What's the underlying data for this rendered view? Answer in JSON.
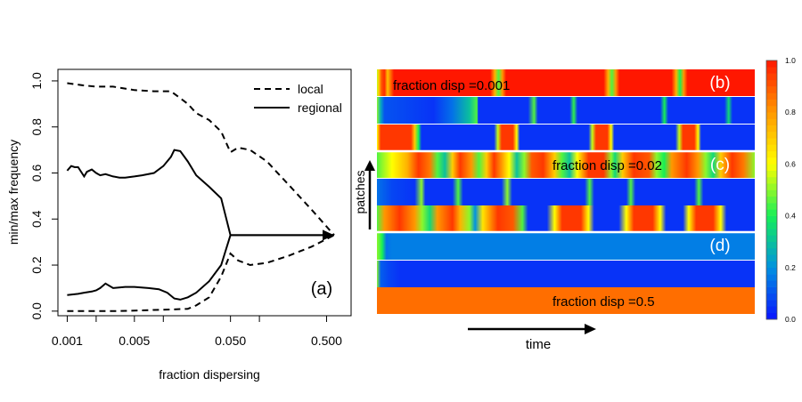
{
  "chart_data": [
    {
      "type": "line",
      "panel_label": "(a)",
      "xlabel": "fraction dispersing",
      "ylabel": "min/max frequency",
      "x_scale": "log",
      "xlim": [
        0.0008,
        0.9
      ],
      "ylim": [
        -0.02,
        1.05
      ],
      "x_ticks": [
        0.001,
        0.002,
        0.005,
        0.01,
        0.05,
        0.1,
        0.5
      ],
      "x_tick_labels": [
        "0.001",
        "",
        "0.005",
        "",
        "0.050",
        "",
        "0.500"
      ],
      "y_ticks": [
        0.0,
        0.2,
        0.4,
        0.6,
        0.8,
        1.0
      ],
      "y_tick_labels": [
        "0.0",
        "0.2",
        "0.4",
        "0.6",
        "0.8",
        "1.0"
      ],
      "legend": {
        "position": "top-right",
        "entries": [
          {
            "label": "local",
            "style": "dashed"
          },
          {
            "label": "regional",
            "style": "solid"
          }
        ]
      },
      "series": [
        {
          "name": "local",
          "style": "dashed",
          "role": "max",
          "x": [
            0.001,
            0.0015,
            0.002,
            0.003,
            0.005,
            0.008,
            0.012,
            0.018,
            0.022,
            0.03,
            0.04,
            0.05,
            0.06,
            0.08,
            0.12,
            0.2,
            0.35,
            0.6
          ],
          "y": [
            0.99,
            0.98,
            0.975,
            0.975,
            0.96,
            0.955,
            0.955,
            0.9,
            0.86,
            0.83,
            0.78,
            0.69,
            0.71,
            0.7,
            0.65,
            0.55,
            0.44,
            0.33
          ]
        },
        {
          "name": "local",
          "style": "dashed",
          "role": "min",
          "x": [
            0.001,
            0.003,
            0.005,
            0.008,
            0.012,
            0.018,
            0.022,
            0.03,
            0.04,
            0.05,
            0.06,
            0.08,
            0.12,
            0.2,
            0.35,
            0.6
          ],
          "y": [
            0.0,
            0.0,
            0.002,
            0.005,
            0.007,
            0.01,
            0.025,
            0.06,
            0.15,
            0.25,
            0.22,
            0.2,
            0.21,
            0.24,
            0.28,
            0.33
          ]
        },
        {
          "name": "regional",
          "style": "solid",
          "role": "max",
          "x": [
            0.001,
            0.0011,
            0.0012,
            0.0013,
            0.0015,
            0.0016,
            0.0018,
            0.002,
            0.0022,
            0.0025,
            0.003,
            0.0035,
            0.004,
            0.005,
            0.006,
            0.008,
            0.01,
            0.012,
            0.013,
            0.015,
            0.018,
            0.022,
            0.03,
            0.04,
            0.05,
            0.6
          ],
          "y": [
            0.61,
            0.63,
            0.625,
            0.625,
            0.585,
            0.605,
            0.615,
            0.6,
            0.59,
            0.595,
            0.585,
            0.58,
            0.58,
            0.585,
            0.59,
            0.6,
            0.63,
            0.67,
            0.7,
            0.695,
            0.65,
            0.59,
            0.54,
            0.49,
            0.33,
            0.33
          ]
        },
        {
          "name": "regional",
          "style": "solid",
          "role": "min",
          "x": [
            0.001,
            0.0013,
            0.0015,
            0.0018,
            0.002,
            0.0022,
            0.0025,
            0.003,
            0.004,
            0.005,
            0.007,
            0.009,
            0.011,
            0.013,
            0.015,
            0.018,
            0.022,
            0.03,
            0.04,
            0.05,
            0.6
          ],
          "y": [
            0.07,
            0.075,
            0.08,
            0.085,
            0.09,
            0.1,
            0.12,
            0.1,
            0.105,
            0.105,
            0.1,
            0.095,
            0.08,
            0.055,
            0.05,
            0.06,
            0.08,
            0.13,
            0.2,
            0.33,
            0.33
          ]
        }
      ]
    },
    {
      "type": "heatmap",
      "xlabel": "time",
      "ylabel": "patches",
      "colorbar": {
        "min": 0.0,
        "max": 1.0,
        "ticks": [
          0.0,
          0.2,
          0.4,
          0.6,
          0.8,
          1.0
        ],
        "tick_labels": [
          "0.0",
          "0.2",
          "0.4",
          "0.6",
          "0.8",
          "1.0"
        ]
      },
      "colormap": [
        "#0a14ff",
        "#0091e0",
        "#16ef57",
        "#ffff00",
        "#ff9800",
        "#ff1700"
      ],
      "groups": [
        {
          "panel_label": "(b)",
          "annotation": "fraction disp =0.001",
          "rows": [
            [
              [
                0,
                0.55
              ],
              [
                0.005,
                0.7
              ],
              [
                0.012,
                0.9
              ],
              [
                0.02,
                0.97
              ],
              [
                0.028,
                0.72
              ],
              [
                0.036,
                0.86
              ],
              [
                0.045,
                1
              ],
              [
                0.3,
                1
              ],
              [
                0.312,
                0.75
              ],
              [
                0.322,
                0.45
              ],
              [
                0.332,
                0.8
              ],
              [
                0.342,
                1
              ],
              [
                0.6,
                1
              ],
              [
                0.612,
                0.75
              ],
              [
                0.622,
                0.45
              ],
              [
                0.632,
                0.8
              ],
              [
                0.642,
                1
              ],
              [
                0.78,
                1
              ],
              [
                0.792,
                0.75
              ],
              [
                0.802,
                0.4
              ],
              [
                0.812,
                0.8
              ],
              [
                0.822,
                1
              ],
              [
                1,
                1
              ]
            ],
            [
              [
                0,
                0.5
              ],
              [
                0.01,
                0.25
              ],
              [
                0.02,
                0.1
              ],
              [
                0.15,
                0.05
              ],
              [
                0.2,
                0.15
              ],
              [
                0.245,
                0.3
              ],
              [
                0.265,
                0.45
              ],
              [
                0.268,
                0.05
              ],
              [
                0.4,
                0.05
              ],
              [
                0.416,
                0.45
              ],
              [
                0.426,
                0.05
              ],
              [
                0.51,
                0.05
              ],
              [
                0.521,
                0.42
              ],
              [
                0.531,
                0.05
              ],
              [
                0.75,
                0.05
              ],
              [
                0.761,
                0.4
              ],
              [
                0.771,
                0.05
              ],
              [
                0.92,
                0.05
              ],
              [
                0.931,
                0.35
              ],
              [
                0.941,
                0.05
              ],
              [
                1,
                0.05
              ]
            ],
            [
              [
                0,
                0.6
              ],
              [
                0.01,
                0.95
              ],
              [
                0.09,
                0.95
              ],
              [
                0.1,
                0.7
              ],
              [
                0.11,
                0.4
              ],
              [
                0.118,
                0.05
              ],
              [
                0.31,
                0.05
              ],
              [
                0.32,
                0.55
              ],
              [
                0.33,
                0.95
              ],
              [
                0.36,
                0.95
              ],
              [
                0.37,
                0.6
              ],
              [
                0.378,
                0.05
              ],
              [
                0.56,
                0.05
              ],
              [
                0.57,
                0.55
              ],
              [
                0.58,
                0.95
              ],
              [
                0.61,
                0.95
              ],
              [
                0.62,
                0.6
              ],
              [
                0.628,
                0.05
              ],
              [
                0.79,
                0.05
              ],
              [
                0.8,
                0.55
              ],
              [
                0.81,
                0.95
              ],
              [
                0.84,
                0.95
              ],
              [
                0.85,
                0.6
              ],
              [
                0.858,
                0.05
              ],
              [
                1,
                0.05
              ]
            ]
          ]
        },
        {
          "panel_label": "(c)",
          "annotation": "fraction disp =0.02",
          "rows": [
            [
              [
                0,
                0.45
              ],
              [
                0.04,
                0.6
              ],
              [
                0.08,
                0.75
              ],
              [
                0.11,
                0.95
              ],
              [
                0.14,
                0.85
              ],
              [
                0.16,
                0.45
              ],
              [
                0.18,
                0.3
              ],
              [
                0.2,
                0.7
              ],
              [
                0.22,
                0.95
              ],
              [
                0.25,
                0.8
              ],
              [
                0.27,
                0.45
              ],
              [
                0.29,
                0.7
              ],
              [
                0.31,
                0.95
              ],
              [
                0.33,
                0.8
              ],
              [
                0.35,
                0.6
              ],
              [
                0.37,
                0.3
              ],
              [
                0.39,
                0.5
              ],
              [
                0.41,
                0.9
              ],
              [
                0.44,
                0.95
              ],
              [
                0.47,
                0.7
              ],
              [
                0.49,
                0.45
              ],
              [
                0.51,
                0.3
              ],
              [
                0.53,
                0.6
              ],
              [
                0.56,
                0.95
              ],
              [
                0.6,
                0.95
              ],
              [
                0.62,
                0.5
              ],
              [
                0.63,
                0.35
              ],
              [
                0.65,
                0.7
              ],
              [
                0.68,
                0.95
              ],
              [
                0.72,
                0.9
              ],
              [
                0.74,
                0.5
              ],
              [
                0.76,
                0.4
              ],
              [
                0.78,
                0.8
              ],
              [
                0.82,
                0.95
              ],
              [
                0.85,
                0.8
              ],
              [
                0.87,
                0.5
              ],
              [
                0.89,
                0.35
              ],
              [
                0.91,
                0.7
              ],
              [
                0.94,
                0.95
              ],
              [
                0.97,
                0.85
              ],
              [
                1,
                0.5
              ]
            ],
            [
              [
                0,
                0.15
              ],
              [
                0.04,
                0.08
              ],
              [
                0.1,
                0.05
              ],
              [
                0.118,
                0.5
              ],
              [
                0.128,
                0.05
              ],
              [
                0.2,
                0.05
              ],
              [
                0.215,
                0.45
              ],
              [
                0.228,
                0.05
              ],
              [
                0.33,
                0.05
              ],
              [
                0.345,
                0.5
              ],
              [
                0.358,
                0.05
              ],
              [
                0.55,
                0.05
              ],
              [
                0.563,
                0.45
              ],
              [
                0.575,
                0.05
              ],
              [
                0.66,
                0.05
              ],
              [
                0.672,
                0.45
              ],
              [
                0.684,
                0.05
              ],
              [
                0.84,
                0.05
              ],
              [
                0.852,
                0.45
              ],
              [
                0.864,
                0.05
              ],
              [
                1,
                0.05
              ]
            ],
            [
              [
                0,
                0.45
              ],
              [
                0.02,
                0.8
              ],
              [
                0.06,
                0.95
              ],
              [
                0.1,
                0.8
              ],
              [
                0.12,
                0.5
              ],
              [
                0.14,
                0.35
              ],
              [
                0.16,
                0.8
              ],
              [
                0.2,
                0.95
              ],
              [
                0.22,
                0.75
              ],
              [
                0.245,
                0.5
              ],
              [
                0.26,
                0.2
              ],
              [
                0.28,
                0.65
              ],
              [
                0.32,
                0.95
              ],
              [
                0.36,
                0.9
              ],
              [
                0.385,
                0.45
              ],
              [
                0.4,
                0.05
              ],
              [
                0.45,
                0.05
              ],
              [
                0.47,
                0.6
              ],
              [
                0.49,
                0.95
              ],
              [
                0.54,
                0.95
              ],
              [
                0.56,
                0.6
              ],
              [
                0.575,
                0.05
              ],
              [
                0.64,
                0.05
              ],
              [
                0.66,
                0.6
              ],
              [
                0.68,
                0.95
              ],
              [
                0.73,
                0.95
              ],
              [
                0.75,
                0.6
              ],
              [
                0.765,
                0.05
              ],
              [
                0.81,
                0.05
              ],
              [
                0.825,
                0.6
              ],
              [
                0.845,
                0.95
              ],
              [
                0.89,
                0.95
              ],
              [
                0.91,
                0.6
              ],
              [
                0.925,
                0.05
              ],
              [
                1,
                0.05
              ]
            ]
          ]
        },
        {
          "panel_label": "(d)",
          "annotation": "",
          "rows": [
            [
              [
                0,
                0.5
              ],
              [
                0.008,
                0.45
              ],
              [
                0.014,
                0.4
              ],
              [
                0.025,
                0.15
              ],
              [
                0.04,
                0.17
              ],
              [
                0.06,
                0.17
              ],
              [
                1,
                0.17
              ]
            ],
            [
              [
                0,
                0.5
              ],
              [
                0.01,
                0.12
              ],
              [
                0.03,
                0.08
              ],
              [
                0.06,
                0.05
              ],
              [
                1,
                0.05
              ]
            ],
            [
              [
                0,
                0.82
              ],
              [
                0.006,
                0.95
              ],
              [
                0.012,
                0.8
              ],
              [
                1,
                0.8
              ]
            ]
          ]
        },
        {
          "panel_label": "",
          "annotation": "fraction disp =0.5",
          "rows": []
        }
      ]
    }
  ]
}
